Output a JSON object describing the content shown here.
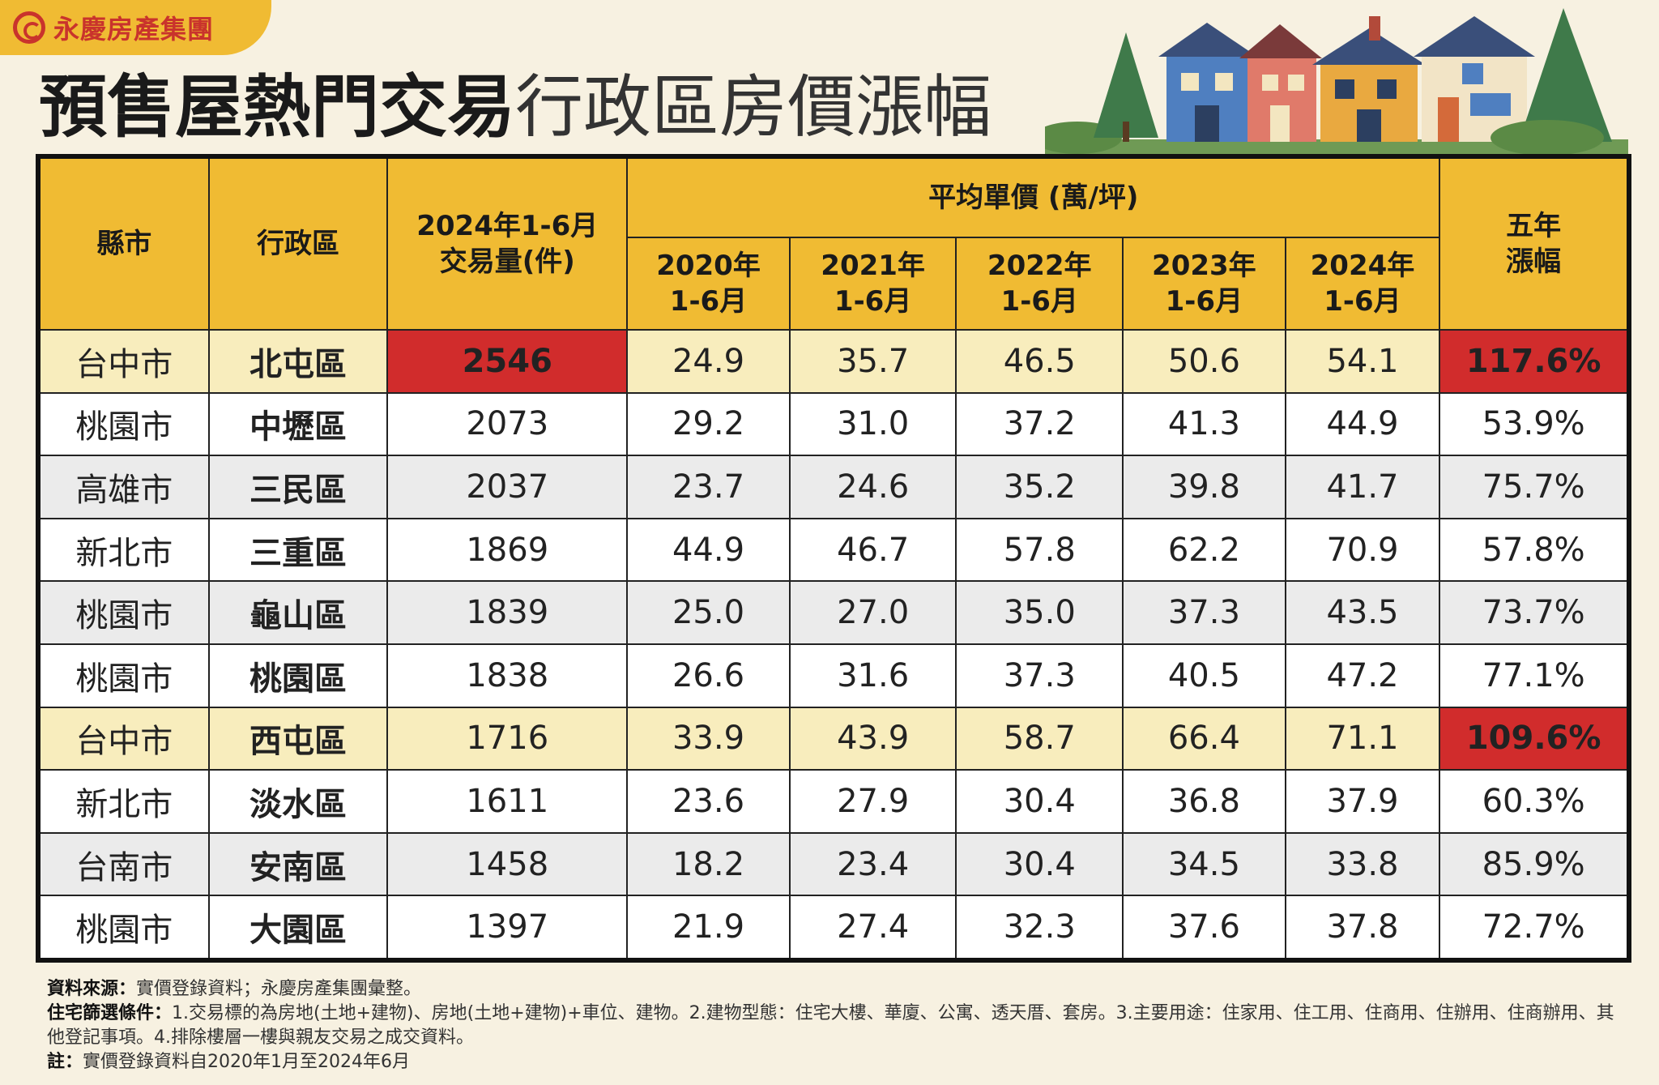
{
  "brand": {
    "name": "永慶房產集團"
  },
  "title": {
    "bold": "預售屋熱門交易",
    "light": "行政區房價漲幅"
  },
  "table": {
    "headers": {
      "county": "縣市",
      "district": "行政區",
      "volume": "2024年1-6月\n交易量(件)",
      "avg_price": "平均單價 (萬/坪)",
      "years": [
        "2020年\n1-6月",
        "2021年\n1-6月",
        "2022年\n1-6月",
        "2023年\n1-6月",
        "2024年\n1-6月"
      ],
      "growth": "五年\n漲幅"
    },
    "rows": [
      {
        "county": "台中市",
        "district": "北屯區",
        "volume": "2546",
        "p2020": "24.9",
        "p2021": "35.7",
        "p2022": "46.5",
        "p2023": "50.6",
        "p2024": "54.1",
        "growth": "117.6%"
      },
      {
        "county": "桃園市",
        "district": "中壢區",
        "volume": "2073",
        "p2020": "29.2",
        "p2021": "31.0",
        "p2022": "37.2",
        "p2023": "41.3",
        "p2024": "44.9",
        "growth": "53.9%"
      },
      {
        "county": "高雄市",
        "district": "三民區",
        "volume": "2037",
        "p2020": "23.7",
        "p2021": "24.6",
        "p2022": "35.2",
        "p2023": "39.8",
        "p2024": "41.7",
        "growth": "75.7%"
      },
      {
        "county": "新北市",
        "district": "三重區",
        "volume": "1869",
        "p2020": "44.9",
        "p2021": "46.7",
        "p2022": "57.8",
        "p2023": "62.2",
        "p2024": "70.9",
        "growth": "57.8%"
      },
      {
        "county": "桃園市",
        "district": "龜山區",
        "volume": "1839",
        "p2020": "25.0",
        "p2021": "27.0",
        "p2022": "35.0",
        "p2023": "37.3",
        "p2024": "43.5",
        "growth": "73.7%"
      },
      {
        "county": "桃園市",
        "district": "桃園區",
        "volume": "1838",
        "p2020": "26.6",
        "p2021": "31.6",
        "p2022": "37.3",
        "p2023": "40.5",
        "p2024": "47.2",
        "growth": "77.1%"
      },
      {
        "county": "台中市",
        "district": "西屯區",
        "volume": "1716",
        "p2020": "33.9",
        "p2021": "43.9",
        "p2022": "58.7",
        "p2023": "66.4",
        "p2024": "71.1",
        "growth": "109.6%"
      },
      {
        "county": "新北市",
        "district": "淡水區",
        "volume": "1611",
        "p2020": "23.6",
        "p2021": "27.9",
        "p2022": "30.4",
        "p2023": "36.8",
        "p2024": "37.9",
        "growth": "60.3%"
      },
      {
        "county": "台南市",
        "district": "安南區",
        "volume": "1458",
        "p2020": "18.2",
        "p2021": "23.4",
        "p2022": "30.4",
        "p2023": "34.5",
        "p2024": "33.8",
        "growth": "85.9%"
      },
      {
        "county": "桃園市",
        "district": "大園區",
        "volume": "1397",
        "p2020": "21.9",
        "p2021": "27.4",
        "p2022": "32.3",
        "p2023": "37.6",
        "p2024": "37.8",
        "growth": "72.7%"
      }
    ]
  },
  "notes": {
    "source_label": "資料來源：",
    "source": "實價登錄資料；永慶房產集團彙整。",
    "criteria_label": "住宅篩選條件：",
    "criteria": "1.交易標的為房地(土地+建物)、房地(土地+建物)+車位、建物。2.建物型態：住宅大樓、華廈、公寓、透天厝、套房。3.主要用途：住家用、住工用、住商用、住辦用、住商辦用、其他登記事項。4.排除樓層一樓與親友交易之成交資料。",
    "note_label": "註：",
    "note": "實價登錄資料自2020年1月至2024年6月"
  },
  "colors": {
    "header_bg": "#f0bb33",
    "highlight_red": "#d12c2c",
    "district_blue": "#1c5fb3",
    "highlight_row": "#f8edbd",
    "stripe": "#ebebeb",
    "background": "#f7f1e1"
  }
}
